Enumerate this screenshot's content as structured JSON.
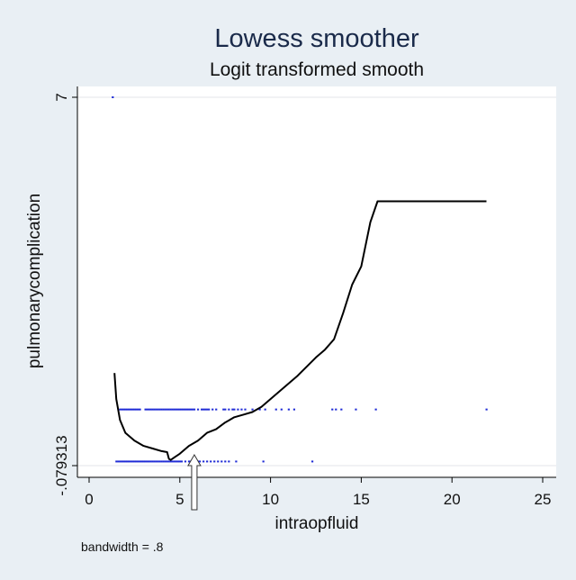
{
  "chart_data": {
    "type": "scatter",
    "title": "Lowess smoother",
    "subtitle": "Logit transformed smooth",
    "xlabel": "intraopfluid",
    "ylabel": "pulmonarycomplication",
    "note": "bandwidth = .8",
    "xlim": [
      0,
      25
    ],
    "ylim": [
      -0.079313,
      7
    ],
    "x_ticks": [
      0,
      5,
      10,
      15,
      20,
      25
    ],
    "y_ticks": [
      {
        "value": -0.079313,
        "label": "-.079313"
      },
      {
        "value": 7,
        "label": "7"
      }
    ],
    "grid": true,
    "colors": {
      "points": "#1f2bd6",
      "smooth": "#000000",
      "grid": "#e3e6ea",
      "plot_bg": "#ffffff"
    },
    "series": [
      {
        "kind": "points",
        "rows": [
          {
            "y": 7,
            "x": [
              1.3
            ]
          },
          {
            "y": 1,
            "x": [
              1.7,
              1.8,
              1.9,
              2.0,
              2.1,
              2.2,
              2.3,
              2.4,
              2.5,
              2.6,
              2.7,
              2.8,
              3.1,
              3.2,
              3.3,
              3.4,
              3.5,
              3.6,
              3.7,
              3.8,
              3.9,
              4.0,
              4.1,
              4.2,
              4.3,
              4.4,
              4.5,
              4.6,
              4.7,
              4.8,
              4.9,
              5.0,
              5.1,
              5.2,
              5.3,
              5.4,
              5.5,
              5.6,
              5.7,
              5.8,
              6.0,
              6.2,
              6.3,
              6.4,
              6.5,
              6.6,
              6.8,
              7.0,
              7.4,
              7.5,
              7.7,
              7.9,
              8.0,
              8.2,
              8.4,
              8.6,
              9.0,
              9.4,
              9.7,
              10.3,
              10.6,
              11.0,
              11.3,
              13.4,
              13.6,
              13.9,
              14.7,
              15.8,
              21.9
            ]
          },
          {
            "y": 0,
            "x": [
              1.5,
              1.6,
              1.7,
              1.8,
              1.9,
              2.0,
              2.1,
              2.2,
              2.3,
              2.4,
              2.5,
              2.6,
              2.7,
              2.8,
              2.9,
              3.0,
              3.1,
              3.2,
              3.3,
              3.4,
              3.5,
              3.6,
              3.7,
              3.8,
              3.9,
              4.0,
              4.1,
              4.2,
              4.3,
              4.4,
              4.5,
              4.6,
              4.7,
              4.8,
              4.9,
              5.0,
              5.1,
              5.3,
              5.5,
              5.6,
              5.8,
              6.0,
              6.1,
              6.3,
              6.5,
              6.7,
              6.9,
              7.1,
              7.3,
              7.5,
              7.7,
              8.1,
              9.6,
              12.3
            ]
          }
        ]
      },
      {
        "kind": "line",
        "x": [
          1.4,
          1.5,
          1.7,
          2.0,
          2.5,
          3.0,
          3.5,
          4.0,
          4.3,
          4.4,
          4.5,
          4.7,
          5.0,
          5.5,
          6.0,
          6.5,
          7.0,
          7.5,
          8.0,
          8.5,
          9.0,
          9.5,
          10.5,
          11.5,
          12.5,
          13.0,
          13.5,
          14.0,
          14.5,
          15.0,
          15.5,
          15.9,
          21.9
        ],
        "y": [
          1.7,
          1.2,
          0.8,
          0.55,
          0.4,
          0.3,
          0.25,
          0.2,
          0.18,
          0.05,
          0.03,
          0.08,
          0.15,
          0.3,
          0.4,
          0.55,
          0.62,
          0.75,
          0.85,
          0.9,
          0.95,
          1.05,
          1.35,
          1.65,
          2.0,
          2.15,
          2.35,
          2.85,
          3.4,
          3.75,
          4.6,
          5.0,
          5.0
        ]
      }
    ],
    "annotations": [
      {
        "type": "arrow",
        "x": 5.8,
        "pointing": "up"
      }
    ]
  }
}
